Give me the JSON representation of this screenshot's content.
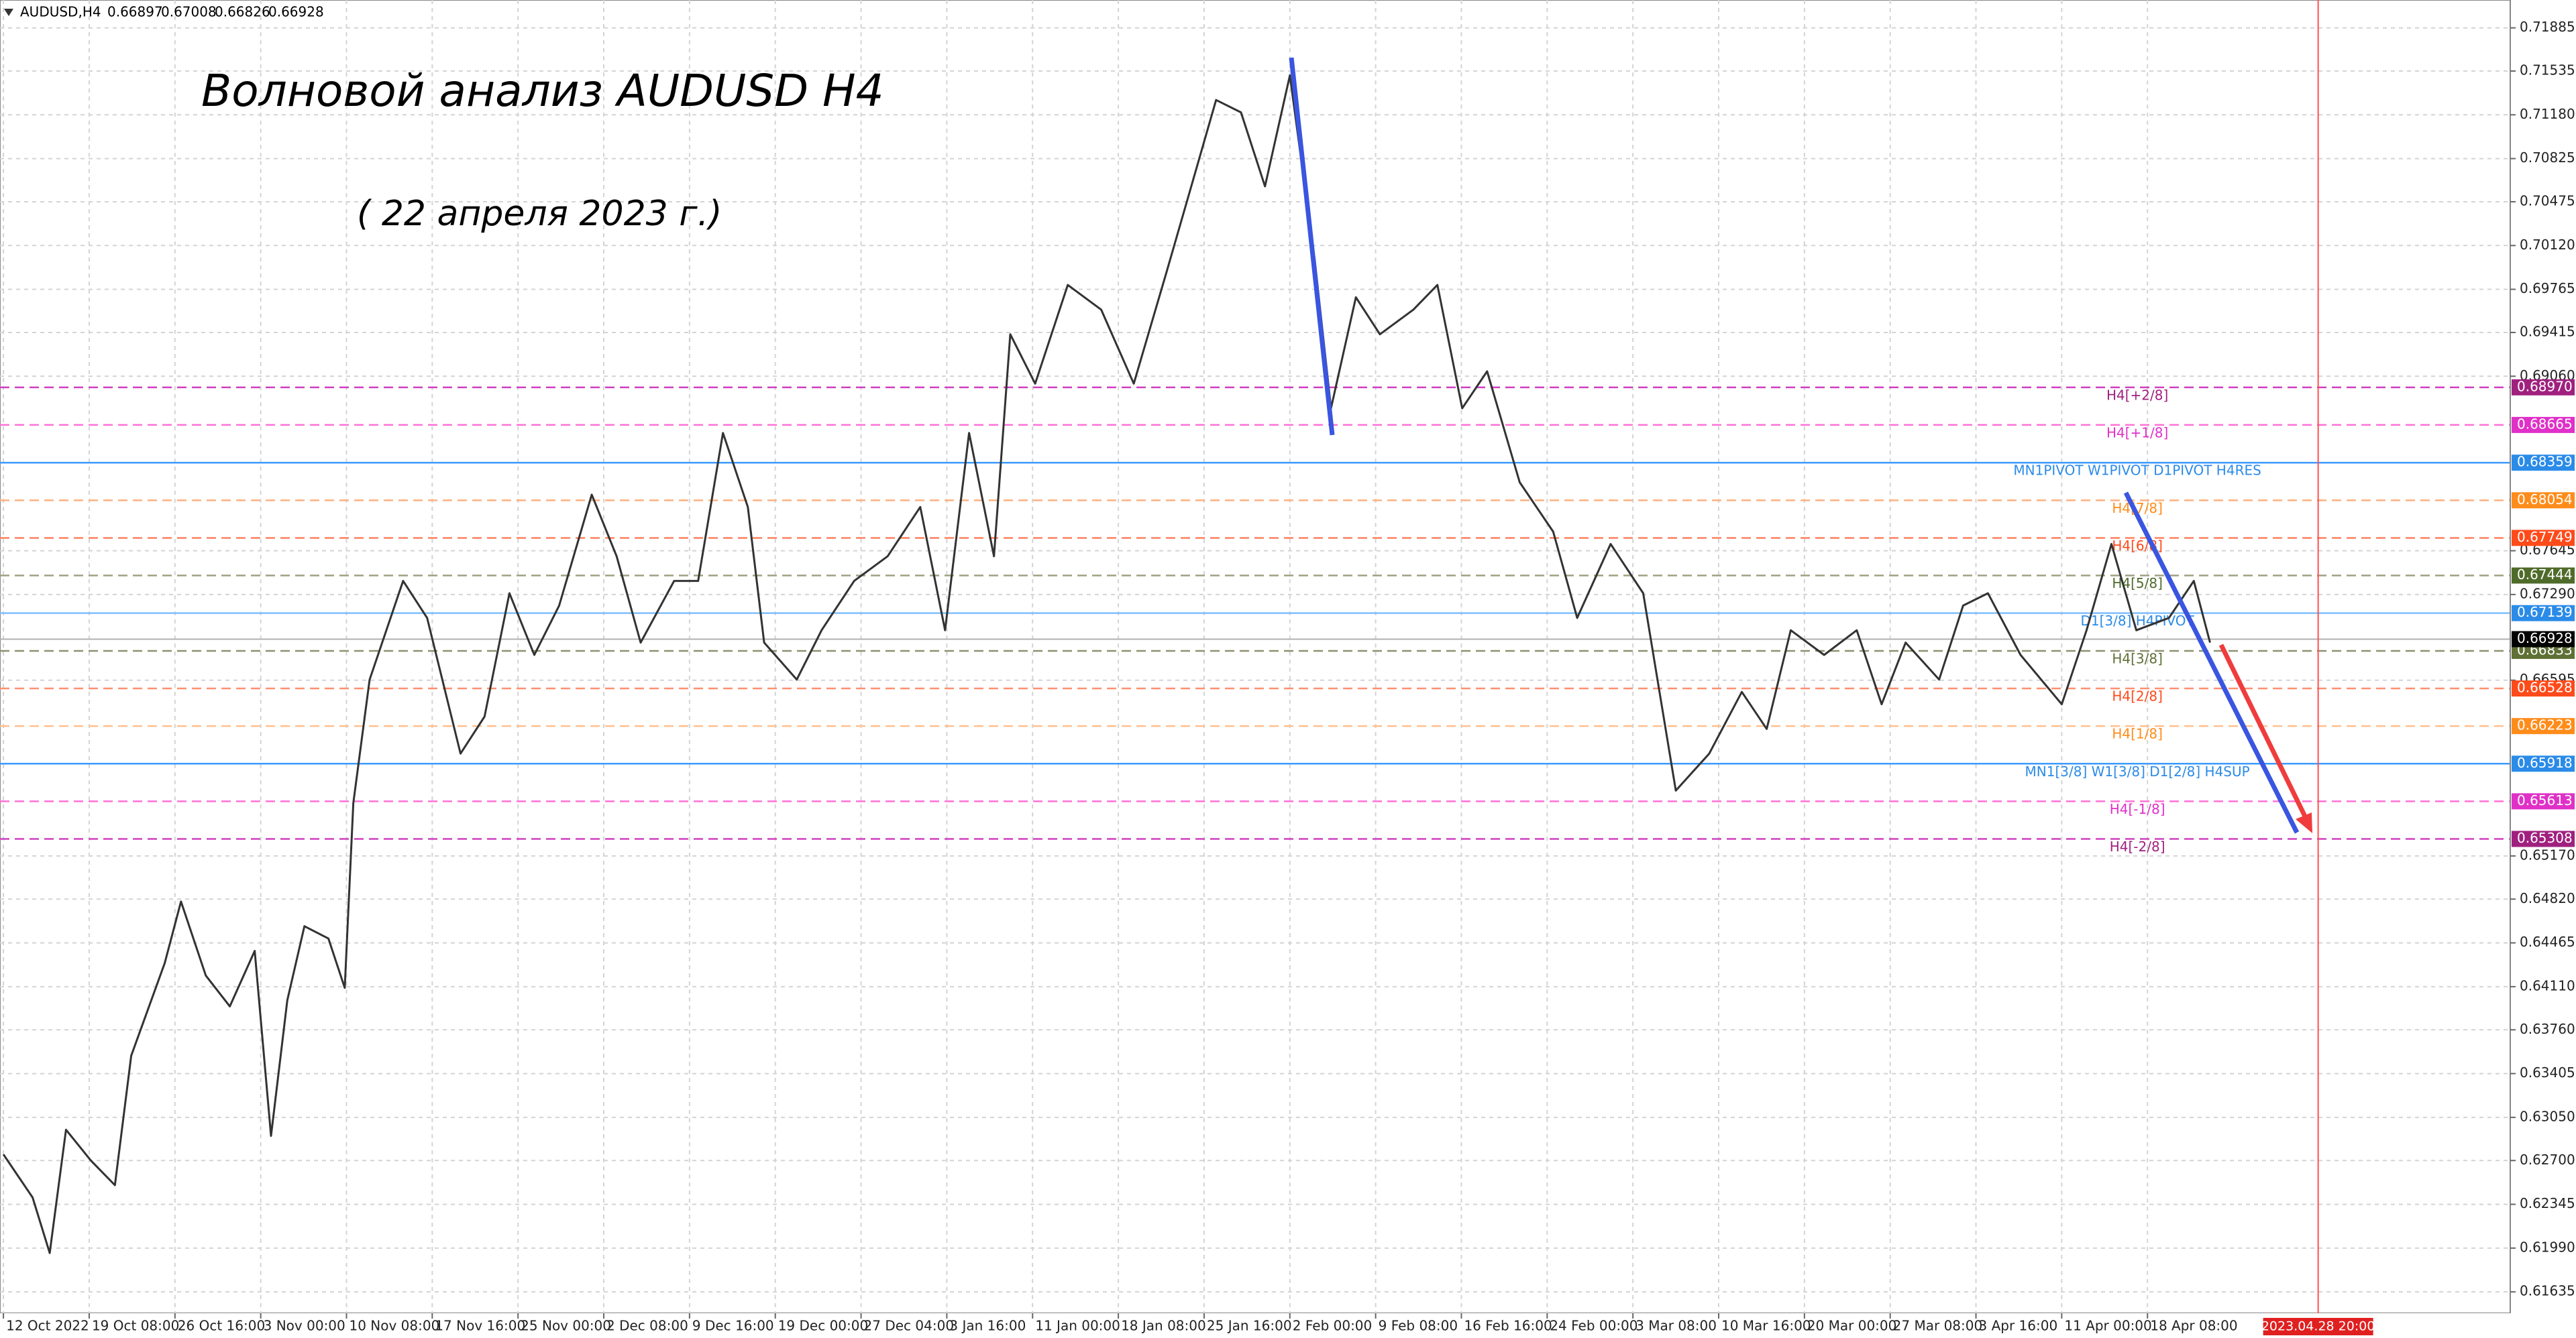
{
  "chart_data": {
    "type": "line",
    "header": {
      "symbol": "AUDUSD,H4",
      "ohlc": [
        0.66897,
        0.67008,
        0.66826,
        0.66928
      ]
    },
    "title": "Волновой анализ AUDUSD H4",
    "subtitle": "( 22 апреля 2023 г.)",
    "grid": true,
    "xlim": [
      -0.04,
      29.23
    ],
    "ylim": [
      0.61462,
      0.72111
    ],
    "xticks": [
      {
        "value": 0,
        "label": "12 Oct 2022"
      },
      {
        "value": 1,
        "label": "19 Oct 08:00"
      },
      {
        "value": 2,
        "label": "26 Oct 16:00"
      },
      {
        "value": 3,
        "label": "3 Nov 00:00"
      },
      {
        "value": 4,
        "label": "10 Nov 08:00"
      },
      {
        "value": 5,
        "label": "17 Nov 16:00"
      },
      {
        "value": 6,
        "label": "25 Nov 00:00"
      },
      {
        "value": 7,
        "label": "2 Dec 08:00"
      },
      {
        "value": 8,
        "label": "9 Dec 16:00"
      },
      {
        "value": 9,
        "label": "19 Dec 00:00"
      },
      {
        "value": 10,
        "label": "27 Dec 04:00"
      },
      {
        "value": 11,
        "label": "3 Jan 16:00"
      },
      {
        "value": 12,
        "label": "11 Jan 00:00"
      },
      {
        "value": 13,
        "label": "18 Jan 08:00"
      },
      {
        "value": 14,
        "label": "25 Jan 16:00"
      },
      {
        "value": 15,
        "label": "2 Feb 00:00"
      },
      {
        "value": 16,
        "label": "9 Feb 08:00"
      },
      {
        "value": 17,
        "label": "16 Feb 16:00"
      },
      {
        "value": 18,
        "label": "24 Feb 00:00"
      },
      {
        "value": 19,
        "label": "3 Mar 08:00"
      },
      {
        "value": 20,
        "label": "10 Mar 16:00"
      },
      {
        "value": 21,
        "label": "20 Mar 00:00"
      },
      {
        "value": 22,
        "label": "27 Mar 08:00"
      },
      {
        "value": 23,
        "label": "3 Apr 16:00"
      },
      {
        "value": 24,
        "label": "11 Apr 00:00"
      },
      {
        "value": 25,
        "label": "18 Apr 08:00"
      }
    ],
    "yticks": [
      {
        "value": 0.71885,
        "label": "0.71885"
      },
      {
        "value": 0.71535,
        "label": "0.71535"
      },
      {
        "value": 0.7118,
        "label": "0.71180"
      },
      {
        "value": 0.70825,
        "label": "0.70825"
      },
      {
        "value": 0.70475,
        "label": "0.70475"
      },
      {
        "value": 0.7012,
        "label": "0.70120"
      },
      {
        "value": 0.69765,
        "label": "0.69765"
      },
      {
        "value": 0.69415,
        "label": "0.69415"
      },
      {
        "value": 0.6906,
        "label": "0.69060"
      },
      {
        "value": 0.67645,
        "label": "0.67645"
      },
      {
        "value": 0.6729,
        "label": "0.67290"
      },
      {
        "value": 0.66595,
        "label": "0.66595"
      },
      {
        "value": 0.6517,
        "label": "0.65170"
      },
      {
        "value": 0.6482,
        "label": "0.64820"
      },
      {
        "value": 0.64465,
        "label": "0.64465"
      },
      {
        "value": 0.6411,
        "label": "0.64110"
      },
      {
        "value": 0.6376,
        "label": "0.63760"
      },
      {
        "value": 0.63405,
        "label": "0.63405"
      },
      {
        "value": 0.6305,
        "label": "0.63050"
      },
      {
        "value": 0.627,
        "label": "0.62700"
      },
      {
        "value": 0.62345,
        "label": "0.62345"
      },
      {
        "value": 0.6199,
        "label": "0.61990"
      },
      {
        "value": 0.61635,
        "label": "0.61635"
      }
    ],
    "series": [
      {
        "color": "#333333",
        "x": [
          0,
          0.34,
          0.54,
          0.73,
          1.02,
          1.3,
          1.49,
          1.88,
          2.07,
          2.36,
          2.64,
          2.93,
          3.12,
          3.31,
          3.51,
          3.79,
          3.98,
          4.08,
          4.27,
          4.66,
          4.94,
          5.33,
          5.61,
          5.9,
          6.19,
          6.48,
          6.86,
          7.15,
          7.43,
          7.82,
          8.1,
          8.39,
          8.68,
          8.87,
          9.25,
          9.54,
          9.92,
          10.31,
          10.69,
          10.98,
          11.26,
          11.55,
          11.74,
          12.03,
          12.41,
          12.8,
          13.18,
          13.56,
          13.85,
          14.14,
          14.43,
          14.71,
          15,
          15.29,
          15.48,
          15.77,
          16.05,
          16.44,
          16.72,
          17.01,
          17.3,
          17.68,
          18.07,
          18.35,
          18.74,
          19.12,
          19.5,
          19.89,
          20.27,
          20.56,
          20.84,
          21.23,
          21.61,
          21.9,
          22.18,
          22.57,
          22.85,
          23.14,
          23.52,
          24,
          24.29,
          24.58,
          24.87,
          25.25,
          25.54,
          25.73
        ],
        "values": [
          0.6275,
          0.624,
          0.6195,
          0.6295,
          0.627,
          0.625,
          0.6355,
          0.643,
          0.648,
          0.642,
          0.6395,
          0.644,
          0.629,
          0.64,
          0.646,
          0.645,
          0.641,
          0.656,
          0.666,
          0.674,
          0.671,
          0.66,
          0.663,
          0.673,
          0.668,
          0.672,
          0.681,
          0.676,
          0.669,
          0.674,
          0.674,
          0.686,
          0.68,
          0.669,
          0.666,
          0.67,
          0.674,
          0.676,
          0.68,
          0.67,
          0.686,
          0.676,
          0.694,
          0.69,
          0.698,
          0.696,
          0.69,
          0.699,
          0.706,
          0.713,
          0.712,
          0.706,
          0.715,
          0.7,
          0.688,
          0.697,
          0.694,
          0.696,
          0.698,
          0.688,
          0.691,
          0.682,
          0.678,
          0.671,
          0.677,
          0.673,
          0.657,
          0.66,
          0.665,
          0.662,
          0.67,
          0.668,
          0.67,
          0.664,
          0.669,
          0.666,
          0.672,
          0.673,
          0.668,
          0.664,
          0.67,
          0.677,
          0.67,
          0.671,
          0.674,
          0.669
        ]
      }
    ],
    "levels": [
      {
        "price": {
          "value": 0.6897,
          "label": "0.68970"
        },
        "text": "H4[+2/8]",
        "color": "#d040c0",
        "box": "#a0207f",
        "dashed": true
      },
      {
        "price": {
          "value": 0.68665,
          "label": "0.68665"
        },
        "text": "H4[+1/8]",
        "color": "#ff70d8",
        "box": "#e030c8",
        "dashed": true
      },
      {
        "price": {
          "value": 0.68359,
          "label": "0.68359"
        },
        "text": "MN1PIVOT W1PIVOT D1PIVOT H4RES",
        "color": "#3d9bff",
        "box": "#2a8be8",
        "dashed": false
      },
      {
        "price": {
          "value": 0.68054,
          "label": "0.68054"
        },
        "text": "H4[7/8]",
        "color": "#ffb080",
        "box": "#ff8c1a",
        "dashed": true
      },
      {
        "price": {
          "value": 0.67749,
          "label": "0.67749"
        },
        "text": "H4[6/8]",
        "color": "#ff8060",
        "box": "#ff4a1a",
        "dashed": true
      },
      {
        "price": {
          "value": 0.67444,
          "label": "0.67444"
        },
        "text": "H4[5/8]",
        "color": "#a0a080",
        "box": "#4f6b2a",
        "dashed": true
      },
      {
        "price": {
          "value": 0.67139,
          "label": "0.67139"
        },
        "text": "D1[3/8] H4PIVOT",
        "color": "#80bfff",
        "box": "#2a8be8",
        "dashed": false
      },
      {
        "price": {
          "value": 0.66833,
          "label": "0.66833"
        },
        "text": "H4[3/8]",
        "color": "#909070",
        "box": "#5f7035",
        "dashed": true
      },
      {
        "price": {
          "value": 0.66528,
          "label": "0.66528"
        },
        "text": "H4[2/8]",
        "color": "#ff9070",
        "box": "#ff4a1a",
        "dashed": true
      },
      {
        "price": {
          "value": 0.66223,
          "label": "0.66223"
        },
        "text": "H4[1/8]",
        "color": "#ffc090",
        "box": "#ff8c1a",
        "dashed": true
      },
      {
        "price": {
          "value": 0.65918,
          "label": "0.65918"
        },
        "text": "MN1[3/8] W1[3/8] D1[2/8] H4SUP",
        "color": "#3d9bff",
        "box": "#2a8be8",
        "dashed": false
      },
      {
        "price": {
          "value": 0.65613,
          "label": "0.65613"
        },
        "text": "H4[-1/8]",
        "color": "#ff70d8",
        "box": "#e030c8",
        "dashed": true
      },
      {
        "price": {
          "value": 0.65308,
          "label": "0.65308"
        },
        "text": "H4[-2/8]",
        "color": "#d040c0",
        "box": "#a0207f",
        "dashed": true
      }
    ],
    "current_price": {
      "value": 0.66928,
      "label": "0.66928"
    },
    "marker": {
      "value": 26.99,
      "label": "2023.04.28 20:00"
    }
  }
}
